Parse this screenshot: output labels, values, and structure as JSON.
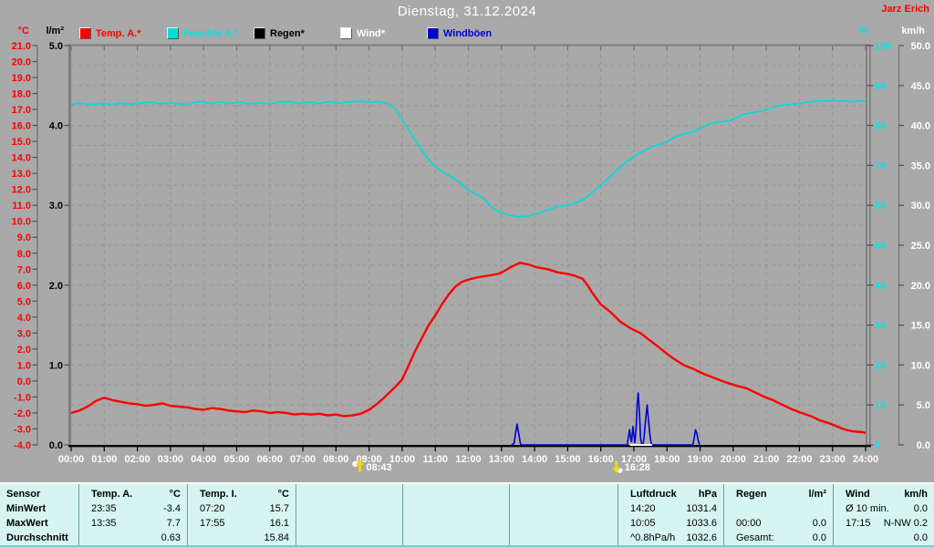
{
  "header": {
    "title": "Dienstag, 31.12.2024",
    "station": "Jarz Erich"
  },
  "legend": {
    "items": [
      {
        "label": "Temp. A.*",
        "color": "#ff0000",
        "text_color": "#ff0000"
      },
      {
        "label": "Feuchte A.*",
        "color": "#00dcdc",
        "text_color": "#00e6e6"
      },
      {
        "label": "Regen*",
        "color": "#000000",
        "text_color": "#000000"
      },
      {
        "label": "Wind*",
        "color": "#ffffff",
        "text_color": "#ffffff"
      },
      {
        "label": "Windböen",
        "color": "#0000d0",
        "text_color": "#0000d0"
      }
    ]
  },
  "axes": {
    "temp": {
      "unit": "°C",
      "color": "#ff0000",
      "range": [
        -4,
        21
      ],
      "labels": [
        "21.0",
        "20.0",
        "19.0",
        "18.0",
        "17.0",
        "16.0",
        "15.0",
        "14.0",
        "13.0",
        "12.0",
        "11.0",
        "10.0",
        "9.0",
        "8.0",
        "7.0",
        "6.0",
        "5.0",
        "4.0",
        "3.0",
        "2.0",
        "1.0",
        "0.0",
        "-1.0",
        "-2.0",
        "-3.0",
        "-4.0"
      ]
    },
    "rain": {
      "unit": "l/m²",
      "color": "#000000",
      "range": [
        0,
        5
      ],
      "labels": [
        "5.0",
        "4.0",
        "3.0",
        "2.0",
        "1.0",
        "0.0"
      ]
    },
    "humidity": {
      "unit": "%",
      "color": "#00e6e6",
      "range": [
        0,
        100
      ],
      "labels": [
        "100",
        "90",
        "80",
        "70",
        "60",
        "50",
        "40",
        "30",
        "20",
        "10",
        "0"
      ]
    },
    "wind": {
      "unit": "km/h",
      "color": "#ffffff",
      "range": [
        0,
        50
      ],
      "labels": [
        "50.0",
        "45.0",
        "40.0",
        "35.0",
        "30.0",
        "25.0",
        "20.0",
        "15.0",
        "10.0",
        "5.0",
        "0.0"
      ]
    },
    "time": {
      "labels": [
        "00:00",
        "01:00",
        "02:00",
        "03:00",
        "04:00",
        "05:00",
        "06:00",
        "07:00",
        "08:00",
        "09:00",
        "10:00",
        "11:00",
        "12:00",
        "13:00",
        "14:00",
        "15:00",
        "16:00",
        "17:00",
        "18:00",
        "19:00",
        "20:00",
        "21:00",
        "22:00",
        "23:00",
        "24:00"
      ]
    }
  },
  "markers": {
    "sunrise": {
      "time": "08:43",
      "hours": 8.72
    },
    "sunset": {
      "time": "16:28",
      "hours": 16.47
    }
  },
  "chart_data": {
    "type": "line",
    "title": "Dienstag, 31.12.2024",
    "xlabel": "time",
    "x_range_hours": [
      0,
      24
    ],
    "grid": true,
    "series": [
      {
        "name": "Temp. A.",
        "unit": "°C",
        "color": "#ff0000",
        "width": 2.4,
        "y_range": [
          -4,
          21
        ],
        "points": [
          [
            0,
            -2.0
          ],
          [
            0.25,
            -1.85
          ],
          [
            0.5,
            -1.6
          ],
          [
            0.75,
            -1.25
          ],
          [
            1.0,
            -1.05
          ],
          [
            1.25,
            -1.2
          ],
          [
            1.5,
            -1.3
          ],
          [
            1.75,
            -1.4
          ],
          [
            2.0,
            -1.45
          ],
          [
            2.25,
            -1.55
          ],
          [
            2.5,
            -1.5
          ],
          [
            2.75,
            -1.4
          ],
          [
            3.0,
            -1.55
          ],
          [
            3.25,
            -1.6
          ],
          [
            3.5,
            -1.65
          ],
          [
            3.75,
            -1.75
          ],
          [
            4.0,
            -1.8
          ],
          [
            4.25,
            -1.7
          ],
          [
            4.5,
            -1.75
          ],
          [
            4.75,
            -1.85
          ],
          [
            5.0,
            -1.9
          ],
          [
            5.25,
            -1.95
          ],
          [
            5.5,
            -1.85
          ],
          [
            5.75,
            -1.9
          ],
          [
            6.0,
            -2.0
          ],
          [
            6.25,
            -1.95
          ],
          [
            6.5,
            -2.0
          ],
          [
            6.75,
            -2.1
          ],
          [
            7.0,
            -2.05
          ],
          [
            7.25,
            -2.1
          ],
          [
            7.5,
            -2.05
          ],
          [
            7.75,
            -2.15
          ],
          [
            8.0,
            -2.1
          ],
          [
            8.25,
            -2.2
          ],
          [
            8.5,
            -2.15
          ],
          [
            8.75,
            -2.05
          ],
          [
            9.0,
            -1.8
          ],
          [
            9.2,
            -1.5
          ],
          [
            9.4,
            -1.15
          ],
          [
            9.6,
            -0.75
          ],
          [
            9.8,
            -0.35
          ],
          [
            10.0,
            0.1
          ],
          [
            10.2,
            1.0
          ],
          [
            10.4,
            1.9
          ],
          [
            10.6,
            2.7
          ],
          [
            10.8,
            3.5
          ],
          [
            11.0,
            4.1
          ],
          [
            11.2,
            4.8
          ],
          [
            11.4,
            5.4
          ],
          [
            11.6,
            5.9
          ],
          [
            11.8,
            6.2
          ],
          [
            12.0,
            6.35
          ],
          [
            12.3,
            6.5
          ],
          [
            12.6,
            6.6
          ],
          [
            12.9,
            6.7
          ],
          [
            13.1,
            6.9
          ],
          [
            13.3,
            7.15
          ],
          [
            13.55,
            7.4
          ],
          [
            13.8,
            7.3
          ],
          [
            14.1,
            7.1
          ],
          [
            14.4,
            7.0
          ],
          [
            14.7,
            6.8
          ],
          [
            15.0,
            6.7
          ],
          [
            15.2,
            6.6
          ],
          [
            15.45,
            6.4
          ],
          [
            15.6,
            6.0
          ],
          [
            15.75,
            5.5
          ],
          [
            16.0,
            4.8
          ],
          [
            16.3,
            4.3
          ],
          [
            16.6,
            3.7
          ],
          [
            16.9,
            3.3
          ],
          [
            17.2,
            3.0
          ],
          [
            17.45,
            2.6
          ],
          [
            17.7,
            2.2
          ],
          [
            18.0,
            1.7
          ],
          [
            18.2,
            1.4
          ],
          [
            18.5,
            1.0
          ],
          [
            18.8,
            0.75
          ],
          [
            19.1,
            0.45
          ],
          [
            19.3,
            0.3
          ],
          [
            19.6,
            0.05
          ],
          [
            19.8,
            -0.1
          ],
          [
            20.1,
            -0.3
          ],
          [
            20.4,
            -0.45
          ],
          [
            20.7,
            -0.75
          ],
          [
            20.9,
            -0.95
          ],
          [
            21.2,
            -1.2
          ],
          [
            21.4,
            -1.4
          ],
          [
            21.7,
            -1.7
          ],
          [
            22.0,
            -1.95
          ],
          [
            22.35,
            -2.2
          ],
          [
            22.6,
            -2.45
          ],
          [
            22.9,
            -2.65
          ],
          [
            23.2,
            -2.9
          ],
          [
            23.4,
            -3.05
          ],
          [
            23.6,
            -3.15
          ],
          [
            23.9,
            -3.2
          ],
          [
            24,
            -3.25
          ]
        ]
      },
      {
        "name": "Feuchte A.",
        "unit": "%",
        "color": "#00dcdc",
        "width": 1.7,
        "y_range": [
          0,
          100
        ],
        "points": [
          [
            0,
            85.2
          ],
          [
            0.3,
            85.6
          ],
          [
            0.6,
            85.2
          ],
          [
            0.9,
            85.5
          ],
          [
            1.2,
            85.2
          ],
          [
            1.5,
            85.6
          ],
          [
            1.8,
            85.3
          ],
          [
            2.1,
            85.6
          ],
          [
            2.4,
            85.9
          ],
          [
            2.7,
            85.4
          ],
          [
            3.0,
            85.7
          ],
          [
            3.3,
            85.3
          ],
          [
            3.6,
            85.6
          ],
          [
            3.9,
            86.0
          ],
          [
            4.2,
            85.5
          ],
          [
            4.5,
            85.9
          ],
          [
            4.8,
            85.5
          ],
          [
            5.1,
            85.8
          ],
          [
            5.4,
            85.4
          ],
          [
            5.7,
            85.7
          ],
          [
            6.0,
            85.4
          ],
          [
            6.3,
            85.8
          ],
          [
            6.6,
            86.0
          ],
          [
            6.9,
            85.5
          ],
          [
            7.2,
            85.9
          ],
          [
            7.5,
            85.5
          ],
          [
            7.8,
            86.0
          ],
          [
            8.1,
            85.6
          ],
          [
            8.4,
            85.9
          ],
          [
            8.7,
            86.1
          ],
          [
            9.0,
            85.8
          ],
          [
            9.3,
            86.0
          ],
          [
            9.55,
            85.6
          ],
          [
            9.7,
            84.8
          ],
          [
            9.85,
            83.5
          ],
          [
            10.0,
            81.5
          ],
          [
            10.15,
            79.5
          ],
          [
            10.3,
            77.5
          ],
          [
            10.5,
            75.0
          ],
          [
            10.7,
            72.5
          ],
          [
            10.9,
            70.5
          ],
          [
            11.1,
            69.0
          ],
          [
            11.4,
            67.5
          ],
          [
            11.7,
            66.0
          ],
          [
            12.0,
            63.8
          ],
          [
            12.3,
            62.5
          ],
          [
            12.5,
            61.5
          ],
          [
            12.7,
            59.5
          ],
          [
            12.9,
            58.5
          ],
          [
            13.2,
            57.6
          ],
          [
            13.5,
            57.1
          ],
          [
            13.8,
            57.3
          ],
          [
            14.1,
            58.0
          ],
          [
            14.3,
            58.6
          ],
          [
            14.7,
            59.7
          ],
          [
            15.1,
            60.2
          ],
          [
            15.5,
            61.5
          ],
          [
            15.9,
            64.3
          ],
          [
            16.2,
            66.5
          ],
          [
            16.5,
            69.0
          ],
          [
            16.8,
            71.0
          ],
          [
            17.1,
            72.8
          ],
          [
            17.5,
            74.5
          ],
          [
            17.9,
            75.6
          ],
          [
            18.3,
            77.3
          ],
          [
            18.8,
            78.5
          ],
          [
            19.3,
            80.5
          ],
          [
            19.9,
            81.2
          ],
          [
            20.3,
            82.8
          ],
          [
            20.9,
            83.7
          ],
          [
            21.4,
            85.0
          ],
          [
            22.0,
            85.5
          ],
          [
            22.4,
            86.0
          ],
          [
            23.0,
            86.2
          ],
          [
            23.5,
            86.0
          ],
          [
            24,
            86.1
          ]
        ]
      },
      {
        "name": "Windböen",
        "unit": "km/h",
        "color": "#0000d0",
        "width": 1.6,
        "y_range": [
          0,
          50
        ],
        "points": [
          [
            13.3,
            0
          ],
          [
            13.38,
            0.2
          ],
          [
            13.43,
            1.6
          ],
          [
            13.47,
            2.6
          ],
          [
            13.52,
            1.4
          ],
          [
            13.57,
            0.2
          ],
          [
            13.6,
            0
          ],
          [
            16.8,
            0
          ],
          [
            16.83,
            0.9
          ],
          [
            16.87,
            1.9
          ],
          [
            16.9,
            0.9
          ],
          [
            16.93,
            0.4
          ],
          [
            16.97,
            2.3
          ],
          [
            17.0,
            1.2
          ],
          [
            17.03,
            0.3
          ],
          [
            17.07,
            2.2
          ],
          [
            17.1,
            5.2
          ],
          [
            17.13,
            6.5
          ],
          [
            17.17,
            4.0
          ],
          [
            17.2,
            1.0
          ],
          [
            17.23,
            0.2
          ],
          [
            17.27,
            0
          ],
          [
            17.3,
            0.6
          ],
          [
            17.33,
            2.0
          ],
          [
            17.37,
            3.8
          ],
          [
            17.4,
            5.0
          ],
          [
            17.44,
            3.2
          ],
          [
            17.48,
            1.4
          ],
          [
            17.52,
            0.3
          ],
          [
            17.55,
            0
          ],
          [
            18.78,
            0
          ],
          [
            18.82,
            0.8
          ],
          [
            18.86,
            1.9
          ],
          [
            18.9,
            1.5
          ],
          [
            18.94,
            0.6
          ],
          [
            18.98,
            0
          ]
        ]
      },
      {
        "name": "Wind",
        "unit": "km/h",
        "color": "#ffffff",
        "width": 2,
        "y_range": [
          0,
          50
        ],
        "points": [
          [
            16.88,
            0
          ],
          [
            17.55,
            0
          ]
        ]
      },
      {
        "name": "Regen",
        "unit": "l/m²",
        "color": "#000000",
        "width": 1,
        "y_range": [
          0,
          5
        ],
        "points": []
      }
    ]
  },
  "table": {
    "row_labels": [
      "Sensor",
      "MinWert",
      "MaxWert",
      "Durchschnitt"
    ],
    "columns": [
      {
        "name": "temp-a",
        "header": [
          "Temp. A.",
          "°C"
        ],
        "rows": [
          [
            "23:35",
            "-3.4"
          ],
          [
            "13:35",
            "7.7"
          ],
          [
            "",
            "0.63"
          ]
        ]
      },
      {
        "name": "temp-i",
        "header": [
          "Temp. I.",
          "°C"
        ],
        "rows": [
          [
            "07:20",
            "15.7"
          ],
          [
            "17:55",
            "16.1"
          ],
          [
            "",
            "15.84"
          ]
        ]
      },
      {
        "name": "empty-1",
        "header": [
          "",
          ""
        ],
        "rows": [
          [
            "",
            ""
          ],
          [
            "",
            ""
          ],
          [
            "",
            ""
          ]
        ]
      },
      {
        "name": "empty-2",
        "header": [
          "",
          ""
        ],
        "rows": [
          [
            "",
            ""
          ],
          [
            "",
            ""
          ],
          [
            "",
            ""
          ]
        ]
      },
      {
        "name": "empty-3",
        "header": [
          "",
          ""
        ],
        "rows": [
          [
            "",
            ""
          ],
          [
            "",
            ""
          ],
          [
            "",
            ""
          ]
        ]
      },
      {
        "name": "luftdruck",
        "header": [
          "Luftdruck",
          "hPa"
        ],
        "rows": [
          [
            "14:20",
            "1031.4"
          ],
          [
            "10:05",
            "1033.6"
          ],
          [
            "^0.8hPa/h",
            "1032.6"
          ]
        ]
      },
      {
        "name": "regen",
        "header": [
          "Regen",
          "l/m²"
        ],
        "rows": [
          [
            "",
            ""
          ],
          [
            "00:00",
            "0.0"
          ],
          [
            "Gesamt:",
            "0.0"
          ]
        ]
      },
      {
        "name": "wind",
        "header": [
          "Wind",
          "km/h"
        ],
        "rows": [
          [
            "Ø 10 min.",
            "0.0"
          ],
          [
            "17:15",
            "N-NW 0.2"
          ],
          [
            "",
            "0.0"
          ]
        ]
      }
    ]
  }
}
